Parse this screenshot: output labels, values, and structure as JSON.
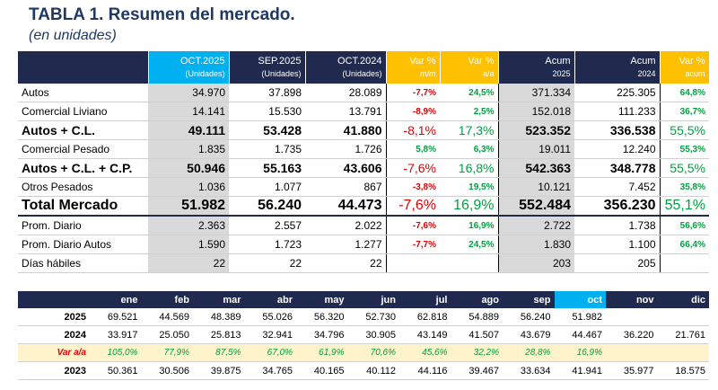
{
  "title": "TABLA 1. Resumen del mercado.",
  "subtitle": "(en unidades)",
  "table1": {
    "columns": [
      {
        "line1": "OCT.2025",
        "line2": "(Unidades)"
      },
      {
        "line1": "SEP.2025",
        "line2": "(Unidades)"
      },
      {
        "line1": "OCT.2024",
        "line2": "(Unidades)"
      },
      {
        "line1": "Var %",
        "line2": "m/m"
      },
      {
        "line1": "Var %",
        "line2": "a/a"
      },
      {
        "line1": "Acum",
        "line2": "2025"
      },
      {
        "line1": "Acum",
        "line2": "2024"
      },
      {
        "line1": "Var %",
        "line2": "acum"
      }
    ],
    "rows": [
      {
        "label": "Autos",
        "cells": [
          "34.970",
          "37.898",
          "28.089",
          "-7,7%",
          "24,5%",
          "371.334",
          "225.305",
          "64,8%"
        ]
      },
      {
        "label": "Comercial Liviano",
        "cells": [
          "14.141",
          "15.530",
          "13.791",
          "-8,9%",
          "2,5%",
          "152.018",
          "111.233",
          "36,7%"
        ]
      },
      {
        "label": "Autos + C.L.",
        "cells": [
          "49.111",
          "53.428",
          "41.880",
          "-8,1%",
          "17,3%",
          "523.352",
          "336.538",
          "55,5%"
        ]
      },
      {
        "label": "Comercial Pesado",
        "cells": [
          "1.835",
          "1.735",
          "1.726",
          "5,8%",
          "6,3%",
          "19.011",
          "12.240",
          "55,3%"
        ]
      },
      {
        "label": "Autos + C.L. + C.P.",
        "cells": [
          "50.946",
          "55.163",
          "43.606",
          "-7,6%",
          "16,8%",
          "542.363",
          "348.778",
          "55,5%"
        ]
      },
      {
        "label": "Otros Pesados",
        "cells": [
          "1.036",
          "1.077",
          "867",
          "-3,8%",
          "19,5%",
          "10.121",
          "7.452",
          "35,8%"
        ]
      },
      {
        "label": "Total Mercado",
        "cells": [
          "51.982",
          "56.240",
          "44.473",
          "-7,6%",
          "16,9%",
          "552.484",
          "356.230",
          "55,1%"
        ]
      },
      {
        "label": "Prom. Diario",
        "cells": [
          "2.363",
          "2.557",
          "2.022",
          "-7,6%",
          "16,9%",
          "2.722",
          "1.738",
          "56,6%"
        ]
      },
      {
        "label": "Prom. Diario Autos",
        "cells": [
          "1.590",
          "1.723",
          "1.277",
          "-7,7%",
          "24,5%",
          "1.830",
          "1.100",
          "66,4%"
        ]
      },
      {
        "label": "Días hábiles",
        "cells": [
          "22",
          "22",
          "22",
          null,
          null,
          "203",
          "205",
          null
        ]
      }
    ]
  },
  "table2": {
    "months": [
      "ene",
      "feb",
      "mar",
      "abr",
      "may",
      "jun",
      "jul",
      "ago",
      "sep",
      "oct",
      "nov",
      "dic"
    ],
    "rows": [
      {
        "label": "2025",
        "cells": [
          "69.521",
          "44.569",
          "48.389",
          "55.026",
          "56.320",
          "52.730",
          "62.818",
          "54.889",
          "56.240",
          "51.982",
          null,
          null
        ]
      },
      {
        "label": "2024",
        "cells": [
          "33.917",
          "25.050",
          "25.813",
          "32.941",
          "34.796",
          "30.905",
          "43.149",
          "41.507",
          "43.679",
          "44.467",
          "36.220",
          "21.761"
        ]
      },
      {
        "label": "Var a/a",
        "cells": [
          "105,0%",
          "77,9%",
          "87,5%",
          "67,0%",
          "61,9%",
          "70,6%",
          "45,6%",
          "32,2%",
          "28,8%",
          "16,9%",
          null,
          null
        ]
      },
      {
        "label": "2023",
        "cells": [
          "50.361",
          "30.506",
          "39.875",
          "34.765",
          "40.165",
          "40.112",
          "44.116",
          "39.467",
          "33.634",
          "41.941",
          "35.977",
          "18.575"
        ]
      }
    ]
  }
}
